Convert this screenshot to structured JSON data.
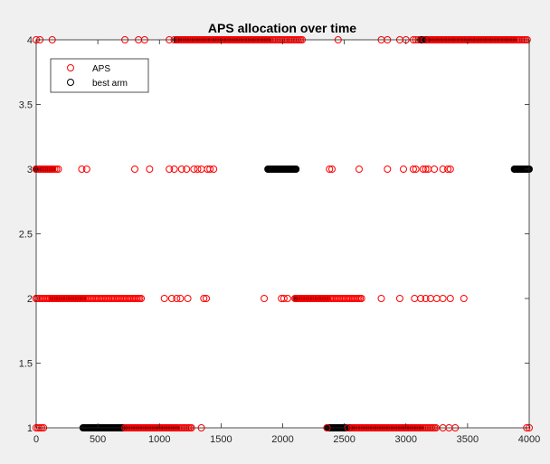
{
  "chart_data": {
    "type": "scatter",
    "title": "APS allocation over time",
    "xlabel": "",
    "ylabel": "",
    "xlim": [
      0,
      4000
    ],
    "ylim": [
      1,
      4
    ],
    "x_ticks": [
      0,
      500,
      1000,
      1500,
      2000,
      2500,
      3000,
      3500,
      4000
    ],
    "y_ticks": [
      1,
      1.5,
      2,
      2.5,
      3,
      3.5,
      4
    ],
    "x_tick_labels": [
      "0",
      "500",
      "1000",
      "1500",
      "2000",
      "2500",
      "3000",
      "3500",
      "4000"
    ],
    "y_tick_labels": [
      "1",
      "1.5",
      "2",
      "2.5",
      "3",
      "3.5",
      "4"
    ],
    "grid": false,
    "legend_position": "top-left",
    "series": [
      {
        "name": "APS",
        "color": "#ff0000",
        "marker": "open-circle",
        "runs": [
          {
            "y": 1,
            "x_start": 0,
            "x_end": 60,
            "step": 15
          },
          {
            "y": 1,
            "x_start": 720,
            "x_end": 1270,
            "step": 12
          },
          {
            "y": 1,
            "x_start": 2560,
            "x_end": 3250,
            "step": 12
          }
        ],
        "points": [
          {
            "x": 1340,
            "y": 1
          },
          {
            "x": 2360,
            "y": 1
          },
          {
            "x": 2530,
            "y": 1
          },
          {
            "x": 3300,
            "y": 1
          },
          {
            "x": 3350,
            "y": 1
          },
          {
            "x": 3400,
            "y": 1
          },
          {
            "x": 3980,
            "y": 1
          },
          {
            "x": 4000,
            "y": 1
          },
          {
            "x": 0,
            "y": 2
          },
          {
            "x": 1040,
            "y": 2
          },
          {
            "x": 1100,
            "y": 2
          },
          {
            "x": 1140,
            "y": 2
          },
          {
            "x": 1170,
            "y": 2
          },
          {
            "x": 1230,
            "y": 2
          },
          {
            "x": 1360,
            "y": 2
          },
          {
            "x": 1380,
            "y": 2
          },
          {
            "x": 1850,
            "y": 2
          },
          {
            "x": 1990,
            "y": 2
          },
          {
            "x": 2010,
            "y": 2
          },
          {
            "x": 2040,
            "y": 2
          },
          {
            "x": 2800,
            "y": 2
          },
          {
            "x": 2950,
            "y": 2
          },
          {
            "x": 3070,
            "y": 2
          },
          {
            "x": 3120,
            "y": 2
          },
          {
            "x": 3160,
            "y": 2
          },
          {
            "x": 3200,
            "y": 2
          },
          {
            "x": 3250,
            "y": 2
          },
          {
            "x": 3300,
            "y": 2
          },
          {
            "x": 3360,
            "y": 2
          },
          {
            "x": 3470,
            "y": 2
          },
          {
            "x": 0,
            "y": 3
          },
          {
            "x": 370,
            "y": 3
          },
          {
            "x": 410,
            "y": 3
          },
          {
            "x": 800,
            "y": 3
          },
          {
            "x": 920,
            "y": 3
          },
          {
            "x": 1080,
            "y": 3
          },
          {
            "x": 1120,
            "y": 3
          },
          {
            "x": 1180,
            "y": 3
          },
          {
            "x": 1220,
            "y": 3
          },
          {
            "x": 1280,
            "y": 3
          },
          {
            "x": 1310,
            "y": 3
          },
          {
            "x": 1340,
            "y": 3
          },
          {
            "x": 1390,
            "y": 3
          },
          {
            "x": 1410,
            "y": 3
          },
          {
            "x": 1440,
            "y": 3
          },
          {
            "x": 2380,
            "y": 3
          },
          {
            "x": 2400,
            "y": 3
          },
          {
            "x": 2620,
            "y": 3
          },
          {
            "x": 2850,
            "y": 3
          },
          {
            "x": 2980,
            "y": 3
          },
          {
            "x": 3060,
            "y": 3
          },
          {
            "x": 3080,
            "y": 3
          },
          {
            "x": 3140,
            "y": 3
          },
          {
            "x": 3160,
            "y": 3
          },
          {
            "x": 3180,
            "y": 3
          },
          {
            "x": 3230,
            "y": 3
          },
          {
            "x": 3300,
            "y": 3
          },
          {
            "x": 3340,
            "y": 3
          },
          {
            "x": 3360,
            "y": 3
          },
          {
            "x": 0,
            "y": 4
          },
          {
            "x": 30,
            "y": 4
          },
          {
            "x": 130,
            "y": 4
          },
          {
            "x": 720,
            "y": 4
          },
          {
            "x": 830,
            "y": 4
          },
          {
            "x": 880,
            "y": 4
          },
          {
            "x": 1080,
            "y": 4
          },
          {
            "x": 1120,
            "y": 4
          },
          {
            "x": 2450,
            "y": 4
          },
          {
            "x": 2800,
            "y": 4
          },
          {
            "x": 2850,
            "y": 4
          },
          {
            "x": 2950,
            "y": 4
          },
          {
            "x": 3000,
            "y": 4
          },
          {
            "x": 3060,
            "y": 4
          },
          {
            "x": 3080,
            "y": 4
          },
          {
            "x": 3100,
            "y": 4
          },
          {
            "x": 3150,
            "y": 4
          }
        ],
        "point_runs": [
          {
            "y": 2,
            "x_start": 0,
            "x_end": 860,
            "step": 12
          },
          {
            "y": 2,
            "x_start": 2100,
            "x_end": 2640,
            "step": 12
          },
          {
            "y": 3,
            "x_start": 0,
            "x_end": 180,
            "step": 15
          },
          {
            "y": 4,
            "x_start": 1150,
            "x_end": 2160,
            "step": 12
          },
          {
            "y": 4,
            "x_start": 3180,
            "x_end": 3990,
            "step": 12
          }
        ]
      },
      {
        "name": "best arm",
        "color": "#000000",
        "marker": "open-circle",
        "runs": [
          {
            "y": 1,
            "x_start": 380,
            "x_end": 1140,
            "step": 6
          },
          {
            "y": 1,
            "x_start": 2360,
            "x_end": 3120,
            "step": 6
          },
          {
            "y": 2,
            "x_start": 130,
            "x_end": 380,
            "step": 6
          },
          {
            "y": 2,
            "x_start": 2110,
            "x_end": 2360,
            "step": 6
          },
          {
            "y": 3,
            "x_start": 0,
            "x_end": 130,
            "step": 6
          },
          {
            "y": 3,
            "x_start": 1880,
            "x_end": 2110,
            "step": 6
          },
          {
            "y": 3,
            "x_start": 3880,
            "x_end": 4000,
            "step": 6
          },
          {
            "y": 4,
            "x_start": 1140,
            "x_end": 1880,
            "step": 6
          },
          {
            "y": 4,
            "x_start": 3120,
            "x_end": 3880,
            "step": 6
          }
        ]
      }
    ]
  }
}
